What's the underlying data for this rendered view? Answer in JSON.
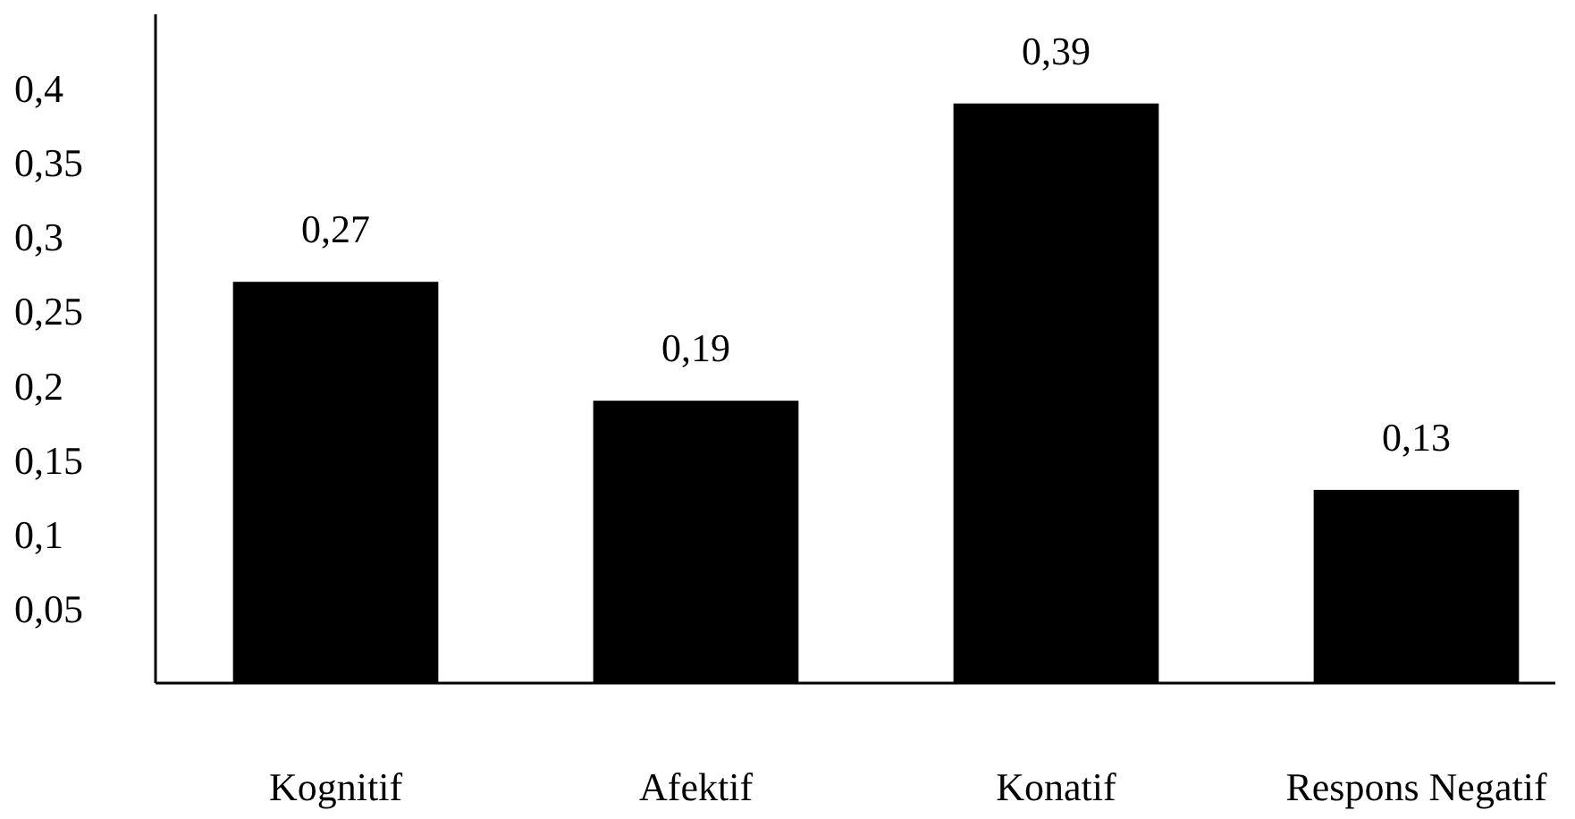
{
  "chart_data": {
    "type": "bar",
    "categories": [
      "Kognitif",
      "Afektif",
      "Konatif",
      "Respons Negatif"
    ],
    "values": [
      0.27,
      0.19,
      0.39,
      0.13
    ],
    "color": "#000000",
    "data_labels": true,
    "value_labels": [
      "0,27",
      "0,19",
      "0,39",
      "0,13"
    ],
    "ylim": [
      0,
      0.45
    ],
    "yticks": [
      {
        "value": 0.05,
        "label": "0,05"
      },
      {
        "value": 0.1,
        "label": "0,1"
      },
      {
        "value": 0.15,
        "label": "0,15"
      },
      {
        "value": 0.2,
        "label": "0,2"
      },
      {
        "value": 0.25,
        "label": "0,25"
      },
      {
        "value": 0.3,
        "label": "0,3"
      },
      {
        "value": 0.35,
        "label": "0,35"
      },
      {
        "value": 0.4,
        "label": "0,4"
      }
    ]
  }
}
